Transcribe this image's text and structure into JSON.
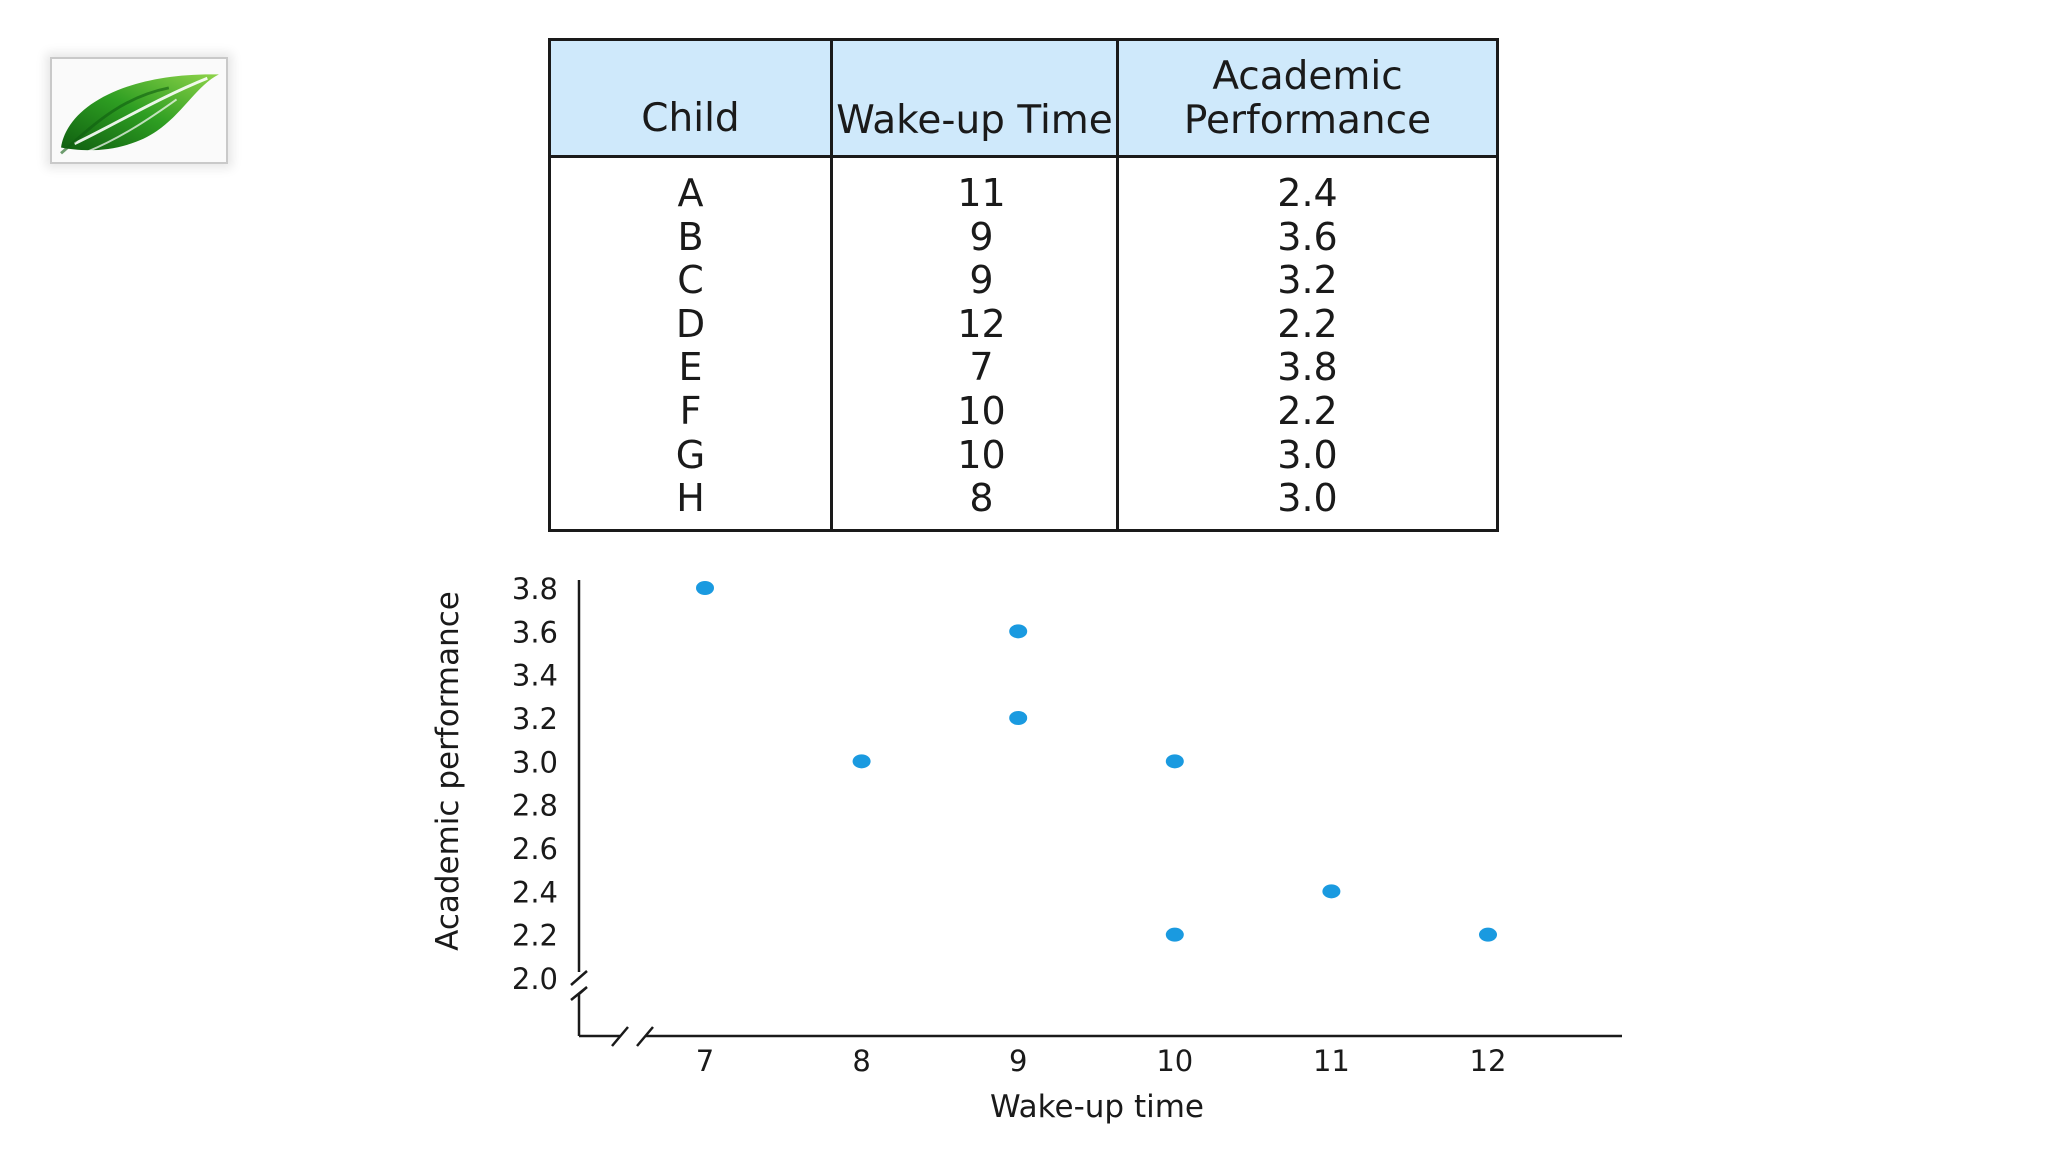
{
  "logo": {
    "icon": "leaf-icon",
    "colors": {
      "leaf": "#2e9e22",
      "leaf_dark": "#0f5e10",
      "vein": "#ffffff"
    }
  },
  "table": {
    "headers": [
      "Child",
      "Wake-up Time",
      "Academic Performance"
    ],
    "rows": [
      [
        "A",
        "11",
        "2.4"
      ],
      [
        "B",
        "9",
        "3.6"
      ],
      [
        "C",
        "9",
        "3.2"
      ],
      [
        "D",
        "12",
        "2.2"
      ],
      [
        "E",
        "7",
        "3.8"
      ],
      [
        "F",
        "10",
        "2.2"
      ],
      [
        "G",
        "10",
        "3.0"
      ],
      [
        "H",
        "8",
        "3.0"
      ]
    ],
    "header_color": "#cfe9fb"
  },
  "chart_data": {
    "type": "scatter",
    "xlabel": "Wake-up time",
    "ylabel": "Academic performance",
    "x_ticks": [
      "7",
      "8",
      "9",
      "10",
      "11",
      "12"
    ],
    "y_ticks": [
      "2.0",
      "2.2",
      "2.4",
      "2.6",
      "2.8",
      "3.0",
      "3.2",
      "3.4",
      "3.6",
      "3.8"
    ],
    "xlim": [
      7,
      12
    ],
    "ylim": [
      2.0,
      3.8
    ],
    "axis_breaks": true,
    "grid": false,
    "point_color": "#1a9ae0",
    "points": [
      {
        "x": 11,
        "y": 2.4
      },
      {
        "x": 9,
        "y": 3.6
      },
      {
        "x": 9,
        "y": 3.2
      },
      {
        "x": 12,
        "y": 2.2
      },
      {
        "x": 7,
        "y": 3.8
      },
      {
        "x": 10,
        "y": 2.2
      },
      {
        "x": 10,
        "y": 3.0
      },
      {
        "x": 8,
        "y": 3.0
      }
    ]
  }
}
